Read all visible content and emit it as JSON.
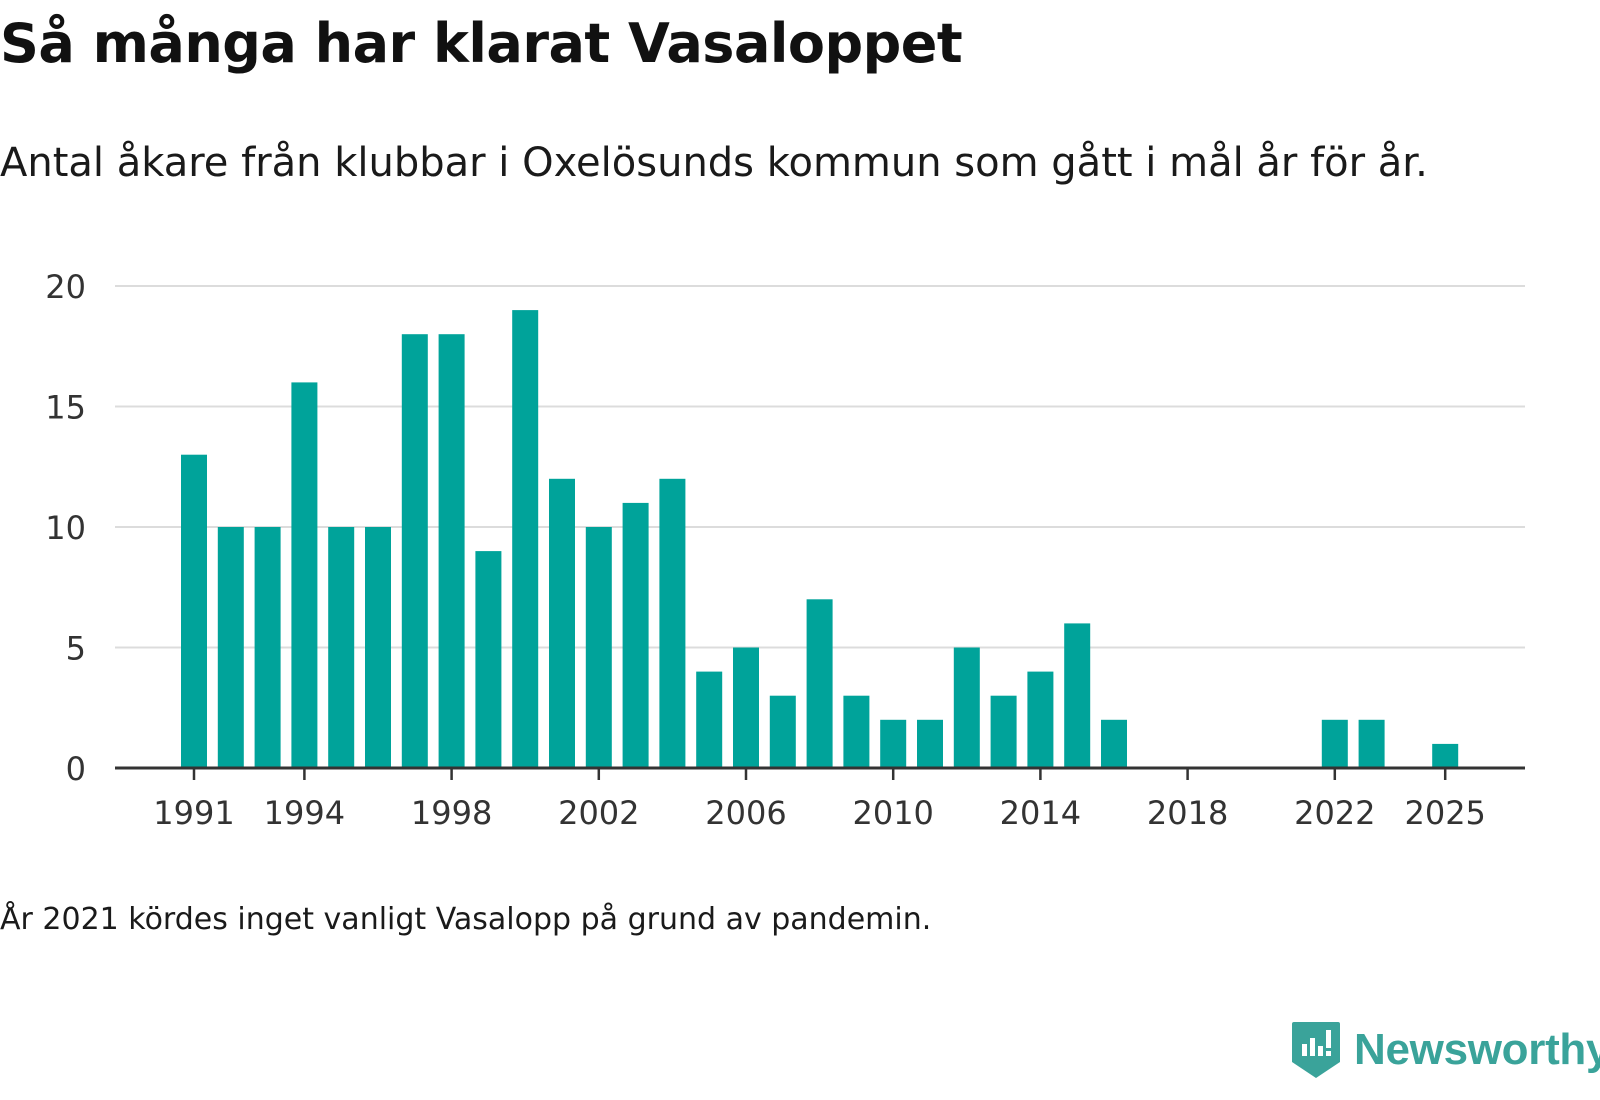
{
  "chart_data": {
    "type": "bar",
    "title": "Så många har klarat Vasaloppet",
    "subtitle": "Antal åkare från klubbar i Oxelösunds kommun som gått i mål år för år.",
    "x": [
      1991,
      1992,
      1993,
      1994,
      1995,
      1996,
      1997,
      1998,
      1999,
      2000,
      2001,
      2002,
      2003,
      2004,
      2005,
      2006,
      2007,
      2008,
      2009,
      2010,
      2011,
      2012,
      2013,
      2014,
      2015,
      2016,
      2017,
      2018,
      2019,
      2020,
      2021,
      2022,
      2023,
      2024,
      2025
    ],
    "values": [
      13,
      10,
      10,
      16,
      10,
      10,
      18,
      18,
      9,
      19,
      12,
      10,
      11,
      12,
      4,
      5,
      3,
      7,
      3,
      2,
      2,
      5,
      3,
      4,
      6,
      2,
      0,
      0,
      0,
      0,
      0,
      2,
      2,
      0,
      1
    ],
    "x_tick_labels": [
      "1991",
      "1994",
      "1998",
      "2002",
      "2006",
      "2010",
      "2014",
      "2018",
      "2022",
      "2025"
    ],
    "y_ticks": [
      0,
      5,
      10,
      15,
      20
    ],
    "ylim": [
      0,
      20
    ],
    "xlabel": "",
    "ylabel": "",
    "grid": true,
    "bar_color": "#00a39a",
    "note": "År 2021 kördes inget vanligt Vasalopp på grund av pandemin."
  },
  "brand": {
    "name": "Newsworthy",
    "color": "#3aa39a",
    "icon": "newsworthy-logo-icon"
  }
}
